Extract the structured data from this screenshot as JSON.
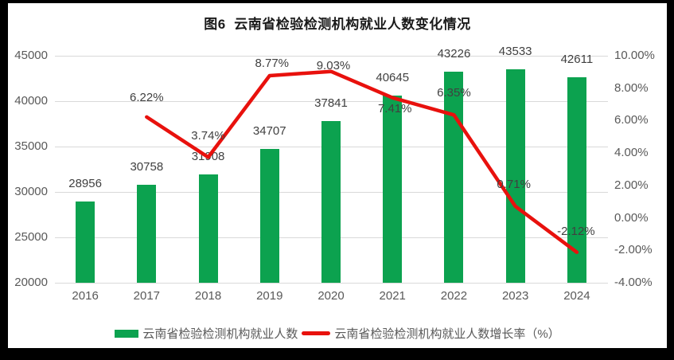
{
  "title": "图6  云南省检验检测机构就业人数变化情况",
  "colors": {
    "bar": "#0ca24f",
    "line": "#e8110d",
    "grid": "#d9d9d9",
    "axis_text": "#595959",
    "data_label_text": "#404040",
    "frame": "#000000",
    "canvas": "#ffffff"
  },
  "chart_data": {
    "type": "bar",
    "subtype": "combo-bar-line-dual-axis",
    "title": "图6  云南省检验检测机构就业人数变化情况",
    "categories": [
      "2016",
      "2017",
      "2018",
      "2019",
      "2020",
      "2021",
      "2022",
      "2023",
      "2024"
    ],
    "series": [
      {
        "name": "云南省检验检测机构就业人数",
        "type": "bar",
        "axis": "left",
        "color": "#0ca24f",
        "values": [
          28956,
          30758,
          31908,
          34707,
          37841,
          40645,
          43226,
          43533,
          42611
        ],
        "data_labels": [
          "28956",
          "30758",
          "31908",
          "34707",
          "37841",
          "40645",
          "43226",
          "43533",
          "42611"
        ]
      },
      {
        "name": "云南省检验检测机构就业人数增长率（%）",
        "type": "line",
        "axis": "right",
        "color": "#e8110d",
        "values": [
          null,
          6.22,
          3.74,
          8.77,
          9.03,
          7.41,
          6.35,
          0.71,
          -2.12
        ],
        "data_labels": [
          null,
          "6.22%",
          "3.74%",
          "8.77%",
          "9.03%",
          "7.41%",
          "6.35%",
          "0.71%",
          "-2.12%"
        ]
      }
    ],
    "left_axis": {
      "min": 20000,
      "max": 45000,
      "step": 5000,
      "tick_labels": [
        "45000",
        "40000",
        "35000",
        "30000",
        "25000",
        "20000"
      ]
    },
    "right_axis": {
      "min": -4,
      "max": 10,
      "step": 2,
      "tick_labels": [
        "10.00%",
        "8.00%",
        "6.00%",
        "4.00%",
        "2.00%",
        "0.00%",
        "-2.00%",
        "-4.00%"
      ]
    },
    "grid": true,
    "legend_position": "bottom"
  },
  "legend": {
    "items": [
      {
        "label": "云南省检验检测机构就业人数",
        "swatch": "rect",
        "color": "#0ca24f"
      },
      {
        "label": "云南省检验检测机构就业人数增长率（%）",
        "swatch": "line",
        "color": "#e8110d"
      }
    ]
  }
}
